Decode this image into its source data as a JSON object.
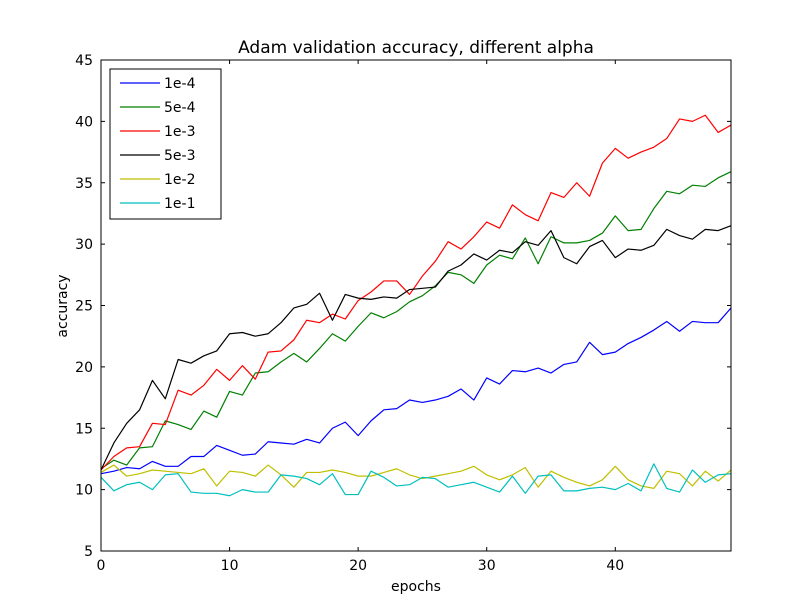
{
  "chart_data": {
    "type": "line",
    "title": "Adam validation accuracy, different alpha",
    "xlabel": "epochs",
    "ylabel": "accuracy",
    "xlim": [
      0,
      49
    ],
    "ylim": [
      5,
      45
    ],
    "xticks": [
      0,
      10,
      20,
      30,
      40
    ],
    "yticks": [
      5,
      10,
      15,
      20,
      25,
      30,
      35,
      40,
      45
    ],
    "grid": false,
    "legend_position": "top-left",
    "x": [
      0,
      1,
      2,
      3,
      4,
      5,
      6,
      7,
      8,
      9,
      10,
      11,
      12,
      13,
      14,
      15,
      16,
      17,
      18,
      19,
      20,
      21,
      22,
      23,
      24,
      25,
      26,
      27,
      28,
      29,
      30,
      31,
      32,
      33,
      34,
      35,
      36,
      37,
      38,
      39,
      40,
      41,
      42,
      43,
      44,
      45,
      46,
      47,
      48,
      49
    ],
    "series": [
      {
        "name": "1e-4",
        "color": "#0000ff",
        "values": [
          11.3,
          11.5,
          11.8,
          11.7,
          12.3,
          11.9,
          11.9,
          12.7,
          12.7,
          13.6,
          13.2,
          12.8,
          12.9,
          13.9,
          13.8,
          13.7,
          14.1,
          13.8,
          15.0,
          15.5,
          14.4,
          15.6,
          16.5,
          16.6,
          17.3,
          17.1,
          17.3,
          17.6,
          18.2,
          17.3,
          19.1,
          18.6,
          19.7,
          19.6,
          19.9,
          19.5,
          20.2,
          20.4,
          22.0,
          21.0,
          21.2,
          21.9,
          22.4,
          23.0,
          23.7,
          22.9,
          23.7,
          23.6,
          23.6,
          24.8
        ]
      },
      {
        "name": "5e-4",
        "color": "#008000",
        "values": [
          11.7,
          12.4,
          12.0,
          13.4,
          13.5,
          15.6,
          15.3,
          14.9,
          16.4,
          15.9,
          18.0,
          17.7,
          19.5,
          19.6,
          20.4,
          21.1,
          20.4,
          21.5,
          22.7,
          22.1,
          23.3,
          24.4,
          24.0,
          24.5,
          25.3,
          25.8,
          26.6,
          27.7,
          27.5,
          26.8,
          28.3,
          29.1,
          28.8,
          30.5,
          28.4,
          30.6,
          30.1,
          30.1,
          30.3,
          30.9,
          32.3,
          31.1,
          31.2,
          32.9,
          34.3,
          34.1,
          34.8,
          34.7,
          35.4,
          35.9
        ]
      },
      {
        "name": "1e-3",
        "color": "#ff0000",
        "values": [
          11.6,
          12.7,
          13.4,
          13.5,
          15.4,
          15.3,
          18.1,
          17.7,
          18.5,
          19.8,
          18.9,
          20.1,
          19.0,
          21.2,
          21.3,
          22.2,
          23.8,
          23.6,
          24.3,
          23.9,
          25.4,
          26.1,
          27.0,
          27.0,
          25.9,
          27.4,
          28.6,
          30.2,
          29.6,
          30.6,
          31.8,
          31.3,
          33.2,
          32.4,
          31.9,
          34.2,
          33.8,
          35.0,
          33.9,
          36.6,
          37.8,
          37.0,
          37.5,
          37.9,
          38.6,
          40.2,
          40.0,
          40.5,
          39.1,
          39.7
        ]
      },
      {
        "name": "5e-3",
        "color": "#000000",
        "values": [
          11.6,
          13.8,
          15.4,
          16.5,
          18.9,
          17.4,
          20.6,
          20.3,
          20.9,
          21.3,
          22.7,
          22.8,
          22.5,
          22.7,
          23.6,
          24.8,
          25.1,
          26.0,
          23.8,
          25.9,
          25.6,
          25.5,
          25.7,
          25.6,
          26.3,
          26.4,
          26.5,
          27.8,
          28.3,
          29.2,
          28.7,
          29.5,
          29.3,
          30.2,
          29.9,
          31.1,
          28.9,
          28.4,
          29.8,
          30.3,
          28.9,
          29.6,
          29.5,
          29.9,
          31.2,
          30.7,
          30.4,
          31.2,
          31.1,
          31.5
        ]
      },
      {
        "name": "1e-2",
        "color": "#bfbf00",
        "values": [
          11.4,
          12.0,
          11.1,
          11.3,
          11.6,
          11.5,
          11.4,
          11.3,
          11.7,
          10.3,
          11.5,
          11.4,
          11.1,
          12.0,
          11.2,
          10.2,
          11.4,
          11.4,
          11.6,
          11.4,
          11.1,
          11.1,
          11.4,
          11.7,
          11.2,
          10.9,
          11.1,
          11.3,
          11.5,
          11.9,
          11.2,
          10.8,
          11.2,
          11.8,
          10.2,
          11.5,
          11.0,
          10.6,
          10.3,
          10.8,
          11.9,
          10.8,
          10.3,
          10.1,
          11.5,
          11.3,
          10.3,
          11.5,
          10.7,
          11.6
        ]
      },
      {
        "name": "1e-1",
        "color": "#00bfbf",
        "values": [
          11.0,
          9.9,
          10.4,
          10.6,
          10.0,
          11.2,
          11.3,
          9.8,
          9.7,
          9.7,
          9.5,
          10.0,
          9.8,
          9.8,
          11.2,
          11.1,
          10.9,
          10.4,
          11.3,
          9.6,
          9.6,
          11.5,
          11.0,
          10.3,
          10.4,
          11.0,
          10.9,
          10.2,
          10.4,
          10.6,
          10.2,
          9.8,
          11.1,
          9.7,
          11.1,
          11.2,
          9.9,
          9.9,
          10.1,
          10.2,
          10.0,
          10.5,
          9.9,
          12.1,
          10.1,
          9.8,
          11.6,
          10.6,
          11.2,
          11.3
        ]
      }
    ]
  }
}
